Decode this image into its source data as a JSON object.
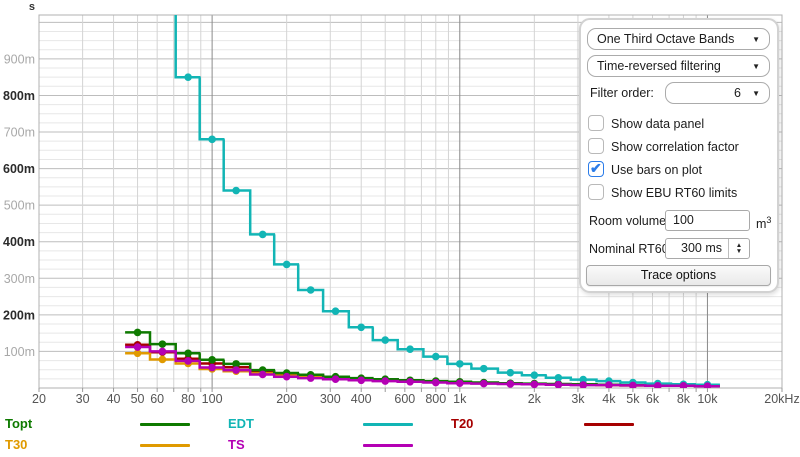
{
  "panel": {
    "bands_dropdown": {
      "value": "One Third Octave Bands"
    },
    "filtering_dropdown": {
      "value": "Time-reversed filtering"
    },
    "filter_order": {
      "label": "Filter order:",
      "value": "6"
    },
    "checkboxes": [
      {
        "label": "Show data panel",
        "checked": false
      },
      {
        "label": "Show correlation factor",
        "checked": false
      },
      {
        "label": "Use bars on plot",
        "checked": true
      },
      {
        "label": "Show EBU RT60 limits",
        "checked": false
      }
    ],
    "room_volume": {
      "label": "Room volume:",
      "value": "100",
      "unit_base": "m",
      "unit_exp": "3"
    },
    "nominal_rt60": {
      "label": "Nominal RT60:",
      "value": "300 ms"
    },
    "trace_options_label": "Trace options",
    "accent_blue": "#2b7ce9"
  },
  "chart_data": {
    "type": "bar",
    "description": "RT60 decay times per one-third octave band, drawn as stepped bars with centre dots",
    "values_unit": "ms",
    "x_axis": {
      "scale": "log",
      "min": 20,
      "max": 20000,
      "unit": "Hz",
      "labeled_ticks": [
        {
          "f": 20,
          "label": "20"
        },
        {
          "f": 30,
          "label": "30"
        },
        {
          "f": 40,
          "label": "40"
        },
        {
          "f": 50,
          "label": "50"
        },
        {
          "f": 60,
          "label": "60"
        },
        {
          "f": 80,
          "label": "80"
        },
        {
          "f": 100,
          "label": "100"
        },
        {
          "f": 200,
          "label": "200"
        },
        {
          "f": 300,
          "label": "300"
        },
        {
          "f": 400,
          "label": "400"
        },
        {
          "f": 600,
          "label": "600"
        },
        {
          "f": 800,
          "label": "800"
        },
        {
          "f": 1000,
          "label": "1k"
        },
        {
          "f": 2000,
          "label": "2k"
        },
        {
          "f": 3000,
          "label": "3k"
        },
        {
          "f": 4000,
          "label": "4k"
        },
        {
          "f": 5000,
          "label": "5k"
        },
        {
          "f": 6000,
          "label": "6k"
        },
        {
          "f": 8000,
          "label": "8k"
        },
        {
          "f": 10000,
          "label": "10k"
        },
        {
          "f": 20000,
          "label": "20kHz"
        }
      ],
      "grid_freqs": [
        20,
        30,
        40,
        50,
        60,
        70,
        80,
        90,
        100,
        200,
        300,
        400,
        500,
        600,
        700,
        800,
        900,
        1000,
        2000,
        3000,
        4000,
        5000,
        6000,
        7000,
        8000,
        9000,
        10000,
        20000
      ],
      "dark_freqs": [
        100,
        1000,
        10000
      ]
    },
    "y_axis": {
      "unit_label": "s",
      "max_ms": 1020,
      "major_ms": 100,
      "minor_ms": 25,
      "labels": [
        {
          "ms": 100,
          "text": "100m",
          "emph": false
        },
        {
          "ms": 200,
          "text": "200m",
          "emph": true
        },
        {
          "ms": 300,
          "text": "300m",
          "emph": false
        },
        {
          "ms": 400,
          "text": "400m",
          "emph": true
        },
        {
          "ms": 500,
          "text": "500m",
          "emph": false
        },
        {
          "ms": 600,
          "text": "600m",
          "emph": true
        },
        {
          "ms": 700,
          "text": "700m",
          "emph": false
        },
        {
          "ms": 800,
          "text": "800m",
          "emph": true
        },
        {
          "ms": 900,
          "text": "900m",
          "emph": false
        }
      ]
    },
    "bands_hz": [
      50,
      63,
      80,
      100,
      125,
      160,
      200,
      250,
      315,
      400,
      500,
      630,
      800,
      1000,
      1250,
      1600,
      2000,
      2500,
      3150,
      4000,
      5000,
      6300,
      8000,
      10000
    ],
    "series": [
      {
        "name": "Topt",
        "color": "#0E7A00",
        "values_ms": [
          152,
          120,
          95,
          77,
          66,
          49,
          41,
          36,
          31,
          27,
          24,
          21,
          19,
          17,
          15,
          13,
          12,
          11,
          10,
          9,
          8,
          7,
          7,
          6
        ]
      },
      {
        "name": "EDT",
        "color": "#12B5B5",
        "values_ms": [
          null,
          1500,
          850,
          680,
          540,
          420,
          338,
          268,
          210,
          166,
          131,
          106,
          86,
          66,
          53,
          42,
          35,
          28,
          23,
          19,
          15,
          12,
          10,
          9
        ]
      },
      {
        "name": "T20",
        "color": "#A60000",
        "values_ms": [
          118,
          98,
          80,
          67,
          57,
          45,
          38,
          33,
          29,
          25,
          22,
          20,
          18,
          16,
          14,
          12,
          11,
          10,
          9,
          8,
          7,
          7,
          6,
          6
        ]
      },
      {
        "name": "T30",
        "color": "#E09A00",
        "values_ms": [
          95,
          78,
          67,
          52,
          46,
          40,
          34,
          30,
          26,
          23,
          21,
          19,
          17,
          15,
          13,
          12,
          11,
          10,
          9,
          8,
          7,
          6,
          6,
          5
        ]
      },
      {
        "name": "TS",
        "color": "#B400B4",
        "values_ms": [
          112,
          100,
          74,
          56,
          49,
          37,
          31,
          27,
          24,
          21,
          19,
          17,
          15,
          13,
          12,
          11,
          10,
          9,
          8,
          8,
          7,
          6,
          6,
          5
        ]
      }
    ],
    "z_order": [
      "T20",
      "T30",
      "Topt",
      "EDT",
      "TS"
    ],
    "style": {
      "grid_minor_h": "#e7e7e7",
      "grid_major_h": "#bdbdbd",
      "grid_v": "#d4d4d4",
      "grid_v_dark": "#8a8a8a",
      "plot_border": "#b0b0b0",
      "x_label_color": "#555555",
      "y_label_light": "#a8a8a8",
      "y_label_dark": "#2b2b2b"
    }
  }
}
